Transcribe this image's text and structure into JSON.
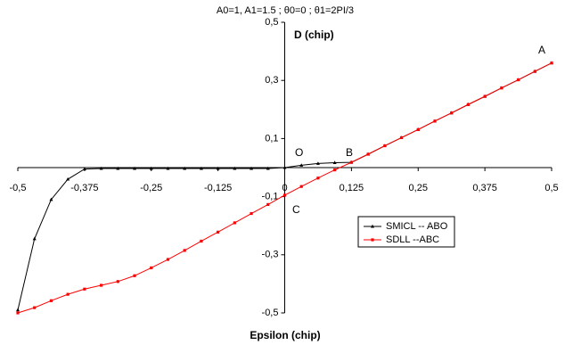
{
  "chart_data": {
    "type": "line",
    "title": "A0=1, A1=1.5 ; θ0=0 ; θ1=2PI/3",
    "x_label": "Epsilon (chip)",
    "annotations": [
      "D (chip)",
      "A",
      "B",
      "O",
      "C"
    ],
    "x": [
      -0.5,
      -0.46875,
      -0.4375,
      -0.40625,
      -0.375,
      -0.34375,
      -0.3125,
      -0.28125,
      -0.25,
      -0.21875,
      -0.1875,
      -0.15625,
      -0.125,
      -0.09375,
      -0.0625,
      -0.03125,
      0,
      0.03125,
      0.0625,
      0.09375,
      0.125,
      0.15625,
      0.1875,
      0.21875,
      0.25,
      0.28125,
      0.3125,
      0.34375,
      0.375,
      0.40625,
      0.4375,
      0.46875,
      0.5
    ],
    "series": [
      {
        "name": "SMICL -- ABO",
        "color": "#000000",
        "marker": "triangle",
        "values": [
          -0.49,
          -0.245,
          -0.11,
          -0.04,
          -0.005,
          -0.003,
          -0.003,
          -0.003,
          -0.003,
          -0.003,
          -0.003,
          -0.003,
          -0.003,
          -0.003,
          -0.003,
          -0.003,
          0,
          0.008,
          0.014,
          0.017,
          0.018,
          0.046,
          0.075,
          0.103,
          0.131,
          0.16,
          0.188,
          0.217,
          0.245,
          0.274,
          0.302,
          0.331,
          0.36
        ]
      },
      {
        "name": "SDLL --ABC",
        "color": "#ff0000",
        "marker": "square",
        "values": [
          -0.5,
          -0.482,
          -0.458,
          -0.436,
          -0.418,
          -0.405,
          -0.392,
          -0.372,
          -0.345,
          -0.316,
          -0.285,
          -0.253,
          -0.222,
          -0.19,
          -0.158,
          -0.127,
          -0.095,
          -0.065,
          -0.036,
          -0.008,
          0.018,
          0.046,
          0.075,
          0.103,
          0.131,
          0.16,
          0.188,
          0.217,
          0.245,
          0.274,
          0.302,
          0.331,
          0.36
        ]
      }
    ],
    "xlim": [
      -0.5,
      0.5
    ],
    "ylim": [
      -0.5,
      0.5
    ],
    "xticks": [
      {
        "value": -0.5,
        "label": "-0,5"
      },
      {
        "value": -0.375,
        "label": "-0,375"
      },
      {
        "value": -0.25,
        "label": "-0,25"
      },
      {
        "value": -0.125,
        "label": "-0,125"
      },
      0,
      {
        "value": 0.125,
        "label": "0,125"
      },
      {
        "value": 0.25,
        "label": "0,25"
      },
      {
        "value": 0.375,
        "label": "0,375"
      },
      {
        "value": 0.5,
        "label": "0,5"
      }
    ],
    "yticks": [
      {
        "value": -0.5,
        "label": "-0,5"
      },
      {
        "value": -0.3,
        "label": "-0,3"
      },
      {
        "value": -0.1,
        "label": "-0,1"
      },
      {
        "value": 0.1,
        "label": "0,1"
      },
      {
        "value": 0.3,
        "label": "0,3"
      },
      {
        "value": 0.5,
        "label": "0,5"
      }
    ],
    "grid": false
  }
}
